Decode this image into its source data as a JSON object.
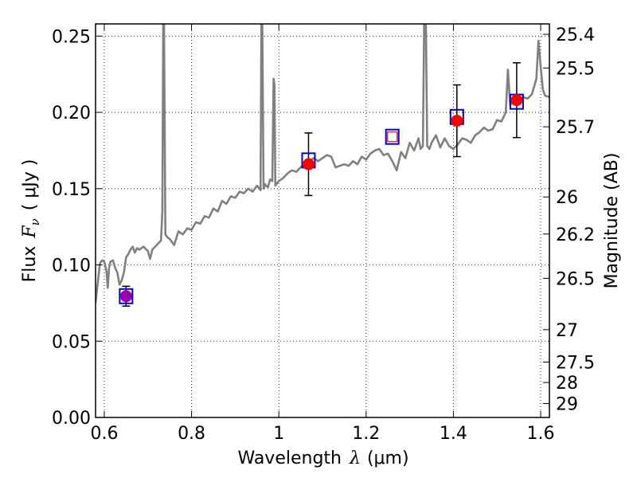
{
  "chart_data": {
    "type": "scatter",
    "xlabel_text": "Wavelength",
    "xlabel_symbol": "λ",
    "xlabel_unit": "(μm)",
    "ylabel_text": "Flux",
    "ylabel_symbol": "F",
    "ylabel_sub": "ν",
    "ylabel_unit": "( μJy )",
    "y2label": "Magnitude (AB)",
    "xlim": [
      0.58,
      1.62
    ],
    "ylim": [
      0.0,
      0.258
    ],
    "x_ticks": [
      0.6,
      0.8,
      1.0,
      1.2,
      1.4,
      1.6
    ],
    "x_tick_labels": [
      "0.6",
      "0.8",
      "1",
      "1.2",
      "1.4",
      "1.6"
    ],
    "y_ticks": [
      0.0,
      0.05,
      0.1,
      0.15,
      0.2,
      0.25
    ],
    "y_tick_labels": [
      "0.00",
      "0.05",
      "0.10",
      "0.15",
      "0.20",
      "0.25"
    ],
    "mag_ticks": [
      25.4,
      25.5,
      25.7,
      26,
      26.2,
      26.5,
      27,
      27.5,
      28,
      29
    ],
    "mag_tick_labels": [
      "25.4",
      "25.5",
      "25.7",
      "26",
      "26.2",
      "26.5",
      "27",
      "27.5",
      "28",
      "29"
    ],
    "grid": true,
    "colors": {
      "model": "#808080",
      "model_box": "#0000cc",
      "detection": "#ff0000",
      "detection_optical": "#9900aa",
      "upper_limit": "#dd2222",
      "errorbar": "#000000"
    },
    "model_spectrum": {
      "x": [
        0.58,
        0.59,
        0.595,
        0.6,
        0.605,
        0.608,
        0.611,
        0.614,
        0.62,
        0.625,
        0.63,
        0.635,
        0.64,
        0.645,
        0.65,
        0.655,
        0.66,
        0.665,
        0.67,
        0.675,
        0.68,
        0.69,
        0.7,
        0.705,
        0.71,
        0.72,
        0.73,
        0.733,
        0.735,
        0.737,
        0.74,
        0.745,
        0.75,
        0.76,
        0.77,
        0.78,
        0.79,
        0.8,
        0.81,
        0.82,
        0.83,
        0.84,
        0.85,
        0.86,
        0.87,
        0.88,
        0.89,
        0.9,
        0.91,
        0.92,
        0.93,
        0.94,
        0.95,
        0.958,
        0.96,
        0.962,
        0.965,
        0.968,
        0.97,
        0.975,
        0.98,
        0.985,
        0.988,
        0.99,
        0.992,
        1.0,
        1.01,
        1.02,
        1.03,
        1.04,
        1.05,
        1.06,
        1.07,
        1.08,
        1.09,
        1.1,
        1.11,
        1.12,
        1.13,
        1.14,
        1.15,
        1.16,
        1.17,
        1.18,
        1.19,
        1.2,
        1.21,
        1.22,
        1.23,
        1.24,
        1.25,
        1.26,
        1.27,
        1.28,
        1.29,
        1.3,
        1.31,
        1.32,
        1.325,
        1.33,
        1.333,
        1.337,
        1.34,
        1.345,
        1.35,
        1.36,
        1.37,
        1.38,
        1.39,
        1.4,
        1.41,
        1.42,
        1.43,
        1.44,
        1.45,
        1.46,
        1.47,
        1.48,
        1.49,
        1.5,
        1.51,
        1.52,
        1.525,
        1.53,
        1.54,
        1.55,
        1.56,
        1.57,
        1.58,
        1.59,
        1.595,
        1.6,
        1.605,
        1.61,
        1.62
      ],
      "y": [
        0.075,
        0.101,
        0.103,
        0.102,
        0.096,
        0.085,
        0.098,
        0.102,
        0.103,
        0.098,
        0.095,
        0.087,
        0.09,
        0.095,
        0.105,
        0.107,
        0.11,
        0.112,
        0.108,
        0.111,
        0.11,
        0.112,
        0.109,
        0.104,
        0.11,
        0.113,
        0.116,
        0.135,
        0.258,
        0.258,
        0.12,
        0.118,
        0.117,
        0.113,
        0.122,
        0.12,
        0.124,
        0.123,
        0.128,
        0.127,
        0.132,
        0.131,
        0.137,
        0.135,
        0.142,
        0.14,
        0.145,
        0.144,
        0.148,
        0.147,
        0.15,
        0.148,
        0.152,
        0.149,
        0.258,
        0.258,
        0.15,
        0.153,
        0.152,
        0.151,
        0.156,
        0.155,
        0.222,
        0.218,
        0.152,
        0.155,
        0.157,
        0.16,
        0.162,
        0.161,
        0.164,
        0.166,
        0.168,
        0.17,
        0.168,
        0.17,
        0.172,
        0.171,
        0.164,
        0.165,
        0.166,
        0.165,
        0.168,
        0.166,
        0.171,
        0.169,
        0.173,
        0.175,
        0.176,
        0.172,
        0.173,
        0.168,
        0.162,
        0.174,
        0.17,
        0.18,
        0.175,
        0.183,
        0.176,
        0.178,
        0.258,
        0.258,
        0.178,
        0.176,
        0.18,
        0.185,
        0.177,
        0.183,
        0.178,
        0.176,
        0.179,
        0.183,
        0.182,
        0.18,
        0.185,
        0.187,
        0.19,
        0.188,
        0.189,
        0.195,
        0.194,
        0.2,
        0.228,
        0.205,
        0.207,
        0.208,
        0.21,
        0.209,
        0.212,
        0.222,
        0.247,
        0.23,
        0.215,
        0.211,
        0.21
      ]
    },
    "model_boxes": [
      {
        "x": 0.65,
        "y": 0.0795
      },
      {
        "x": 1.068,
        "y": 0.1685
      },
      {
        "x": 1.26,
        "y": 0.184
      },
      {
        "x": 1.408,
        "y": 0.197
      },
      {
        "x": 1.545,
        "y": 0.207
      }
    ],
    "detections": [
      {
        "x": 0.65,
        "y": 0.0795,
        "err": 0.0065,
        "kind": "optical"
      },
      {
        "x": 1.068,
        "y": 0.166,
        "err": 0.0205,
        "kind": "nir"
      },
      {
        "x": 1.408,
        "y": 0.1945,
        "err": 0.0235,
        "kind": "nir"
      },
      {
        "x": 1.545,
        "y": 0.208,
        "err": 0.0245,
        "kind": "nir"
      }
    ],
    "upper_limits": [
      {
        "x": 1.26,
        "y": 0.184
      }
    ]
  }
}
